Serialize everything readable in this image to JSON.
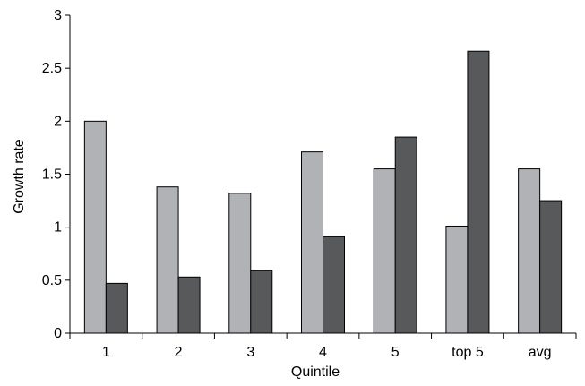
{
  "chart_data": {
    "type": "bar",
    "title": "",
    "xlabel": "Quintile",
    "ylabel": "Growth rate",
    "categories": [
      "1",
      "2",
      "3",
      "4",
      "5",
      "top 5",
      "avg"
    ],
    "ylim": [
      0,
      3
    ],
    "yticks": [
      "0",
      "0.5",
      "1",
      "1.5",
      "2",
      "2.5",
      "3"
    ],
    "grid": false,
    "series": [
      {
        "values": [
          2.0,
          1.38,
          1.32,
          1.71,
          1.55,
          1.01,
          1.55
        ],
        "color": "#b0b2b5"
      },
      {
        "values": [
          0.47,
          0.53,
          0.59,
          0.91,
          1.85,
          2.66,
          1.25
        ],
        "color": "#58595b"
      }
    ]
  }
}
